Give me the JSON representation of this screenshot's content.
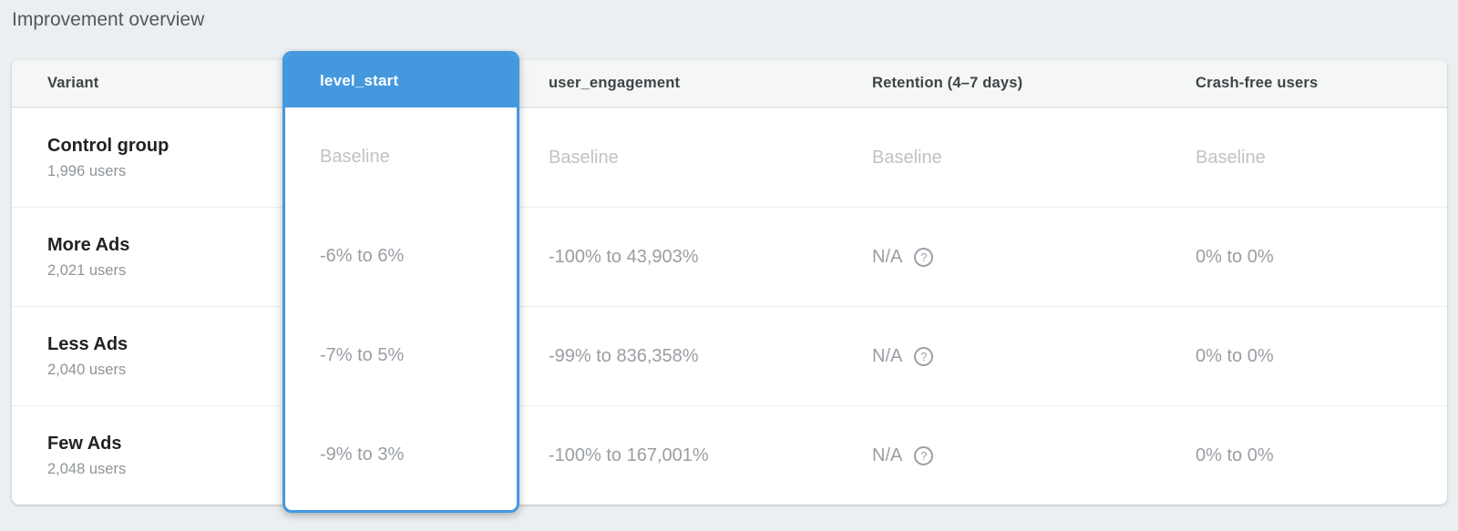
{
  "page": {
    "title": "Improvement overview"
  },
  "table": {
    "columns": {
      "variant": "Variant",
      "level_start": "level_start",
      "user_engagement": "user_engagement",
      "retention": "Retention (4–7 days)",
      "crash_free": "Crash-free users"
    },
    "selected_metric": "level_start",
    "rows": [
      {
        "name": "Control group",
        "users": "1,996 users",
        "level_start": "Baseline",
        "user_engagement": "Baseline",
        "retention": "Baseline",
        "crash_free": "Baseline"
      },
      {
        "name": "More Ads",
        "users": "2,021 users",
        "level_start": "-6% to 6%",
        "user_engagement": "-100% to 43,903%",
        "retention": "N/A",
        "crash_free": "0% to 0%"
      },
      {
        "name": "Less Ads",
        "users": "2,040 users",
        "level_start": "-7% to 5%",
        "user_engagement": "-99% to 836,358%",
        "retention": "N/A",
        "crash_free": "0% to 0%"
      },
      {
        "name": "Few Ads",
        "users": "2,048 users",
        "level_start": "-9% to 3%",
        "user_engagement": "-100% to 167,001%",
        "retention": "N/A",
        "crash_free": "0% to 0%"
      }
    ],
    "help_icon_glyph": "?"
  },
  "colors": {
    "accent_blue": "#4499de",
    "page_background": "#eceff1",
    "baseline_text": "#c0c3c6",
    "value_text": "#999ea3"
  }
}
